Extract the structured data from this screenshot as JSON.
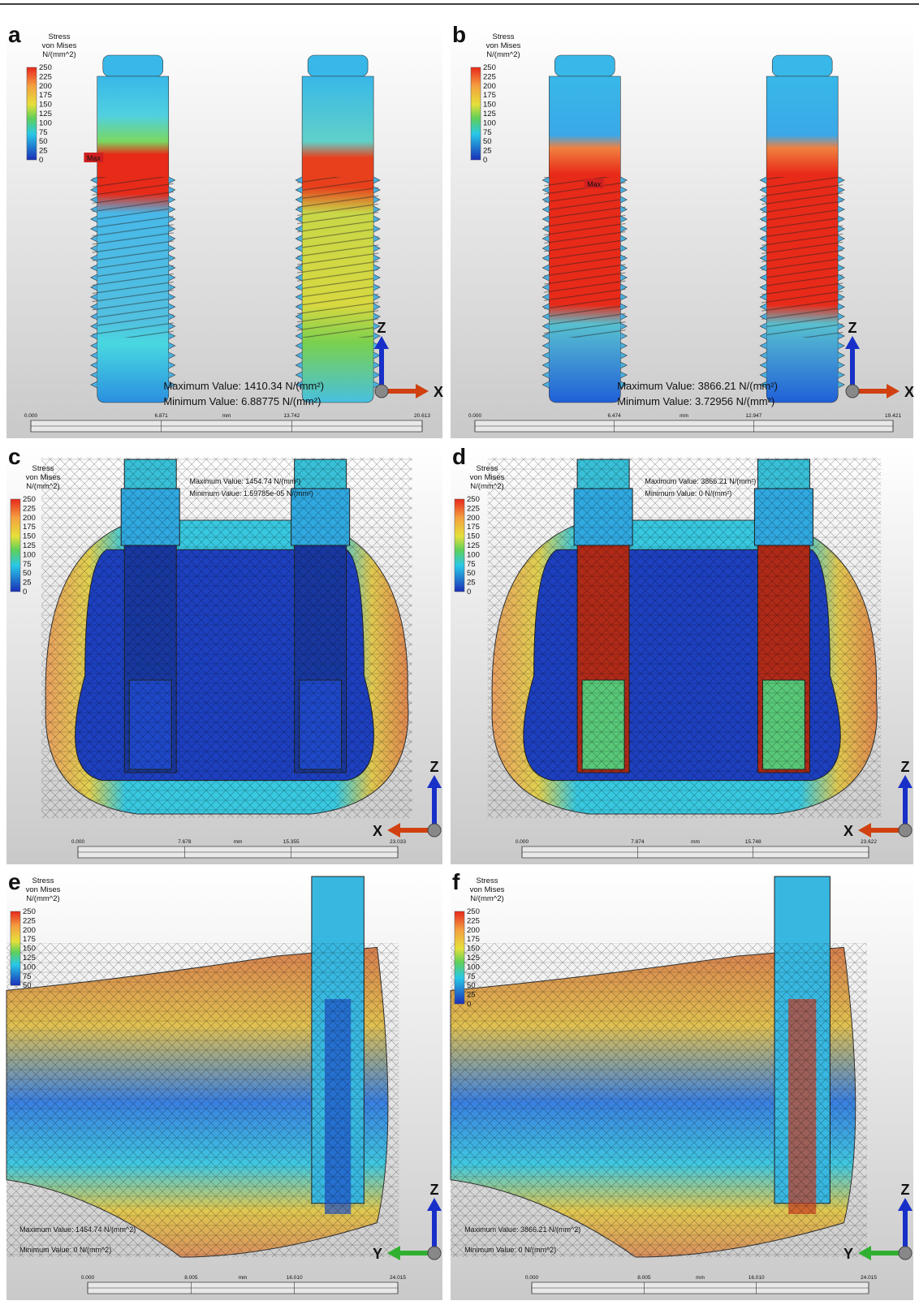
{
  "panels": [
    {
      "label": "a",
      "legend_title": [
        "Stress",
        "von Mises",
        "N/(mm^2)"
      ],
      "legend_ticks": [
        "250",
        "225",
        "200",
        "175",
        "150",
        "125",
        "100",
        "75",
        "50",
        "25",
        "0"
      ],
      "max_marker": "Max",
      "maximum": "Maximum Value: 1410.34 N/(mm²)",
      "minimum": "Minimum Value: 6.88775 N/(mm²)",
      "scale_ticks": [
        "0.000",
        "6.871",
        "mm",
        "13.742",
        "20.613"
      ],
      "axes": [
        "Z",
        "X"
      ]
    },
    {
      "label": "b",
      "legend_title": [
        "Stress",
        "von Mises",
        "N/(mm^2)"
      ],
      "legend_ticks": [
        "250",
        "225",
        "200",
        "175",
        "150",
        "125",
        "100",
        "75",
        "50",
        "25",
        "0"
      ],
      "max_marker": "Max",
      "maximum": "Maximum Value: 3866.21 N/(mm²)",
      "minimum": "Minimum Value: 3.72956 N/(mm²)",
      "scale_ticks": [
        "0.000",
        "6.474",
        "mm",
        "12.947",
        "19.421"
      ],
      "axes": [
        "Z",
        "X"
      ]
    },
    {
      "label": "c",
      "legend_title": [
        "Stress",
        "von Mises",
        "N/(mm^2)"
      ],
      "legend_ticks": [
        "250",
        "225",
        "200",
        "175",
        "150",
        "125",
        "100",
        "75",
        "50",
        "25",
        "0"
      ],
      "maximum": "Maximum Value: 1454.74 N/(mm²)",
      "minimum": "Minimum Value: 1.59785e-05 N/(mm²)",
      "scale_ticks": [
        "0.000",
        "7.678",
        "mm",
        "15.355",
        "23.033"
      ],
      "axes": [
        "Z",
        "X"
      ]
    },
    {
      "label": "d",
      "legend_title": [
        "Stress",
        "von Mises",
        "N/(mm^2)"
      ],
      "legend_ticks": [
        "250",
        "225",
        "200",
        "175",
        "150",
        "125",
        "100",
        "75",
        "50",
        "25",
        "0"
      ],
      "maximum": "Maximum Value: 3866.21 N/(mm²)",
      "minimum": "Minimum Value: 0 N/(mm²)",
      "scale_ticks": [
        "0.000",
        "7.874",
        "mm",
        "15.748",
        "23.622"
      ],
      "axes": [
        "Z",
        "X"
      ]
    },
    {
      "label": "e",
      "legend_title": [
        "Stress",
        "von Mises",
        "N/(mm^2)"
      ],
      "legend_ticks": [
        "250",
        "225",
        "200",
        "175",
        "150",
        "125",
        "100",
        "75",
        "50"
      ],
      "maximum": "Maximum Value: 1454.74 N/(mm^2)",
      "minimum": "Minimum Value: 0 N/(mm^2)",
      "scale_ticks": [
        "0.000",
        "8.005",
        "mm",
        "16.010",
        "24.015"
      ],
      "axes": [
        "Z",
        "Y"
      ]
    },
    {
      "label": "f",
      "legend_title": [
        "Stress",
        "von Mises",
        "N/(mm^2)"
      ],
      "legend_ticks": [
        "250",
        "225",
        "200",
        "175",
        "150",
        "125",
        "100",
        "75",
        "50",
        "25",
        "0"
      ],
      "maximum": "Maximum Value: 3866.21 N/(mm^2)",
      "minimum": "Minimum Value: 0 N/(mm^2)",
      "scale_ticks": [
        "0.000",
        "8.005",
        "mm",
        "16.010",
        "24.015"
      ],
      "axes": [
        "Z",
        "Y"
      ]
    }
  ]
}
